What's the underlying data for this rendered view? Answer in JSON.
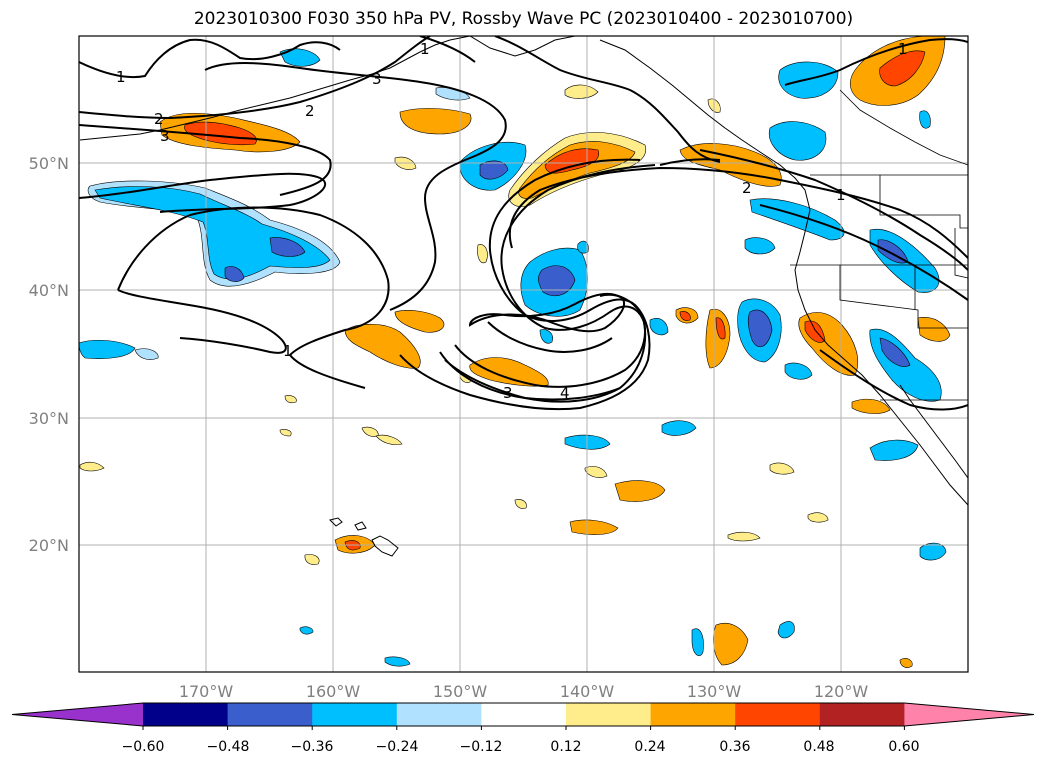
{
  "title": "2023010300 F030 350 hPa PV, Rossby Wave PC (2023010400 - 2023010700)",
  "map": {
    "projection": "lat-lon",
    "lon_range": [
      -180,
      -110
    ],
    "lat_range": [
      10,
      60
    ],
    "lon_labels": [
      "170°W",
      "160°W",
      "150°W",
      "140°W",
      "130°W",
      "120°W"
    ],
    "lat_labels": [
      "50°N",
      "40°N",
      "30°N",
      "20°N"
    ],
    "contour_labels": [
      "1",
      "2",
      "3",
      "4"
    ]
  },
  "colorbar": {
    "ticks": [
      "−0.60",
      "−0.48",
      "−0.36",
      "−0.24",
      "−0.12",
      "0.12",
      "0.24",
      "0.36",
      "0.48",
      "0.60"
    ],
    "colors": [
      "#9932cc",
      "#00008b",
      "#3a5fcd",
      "#00bfff",
      "#b0e2ff",
      "#ffffff",
      "#ffec8b",
      "#ffa500",
      "#ff4500",
      "#b22222",
      "#ff82ab"
    ]
  },
  "colors": {
    "pos_weak": "#ffec8b",
    "pos_mod": "#ffa500",
    "pos_strong": "#ff4500",
    "neg_weak": "#b0e2ff",
    "neg_mod": "#00bfff",
    "neg_strong": "#3a5fcd"
  }
}
